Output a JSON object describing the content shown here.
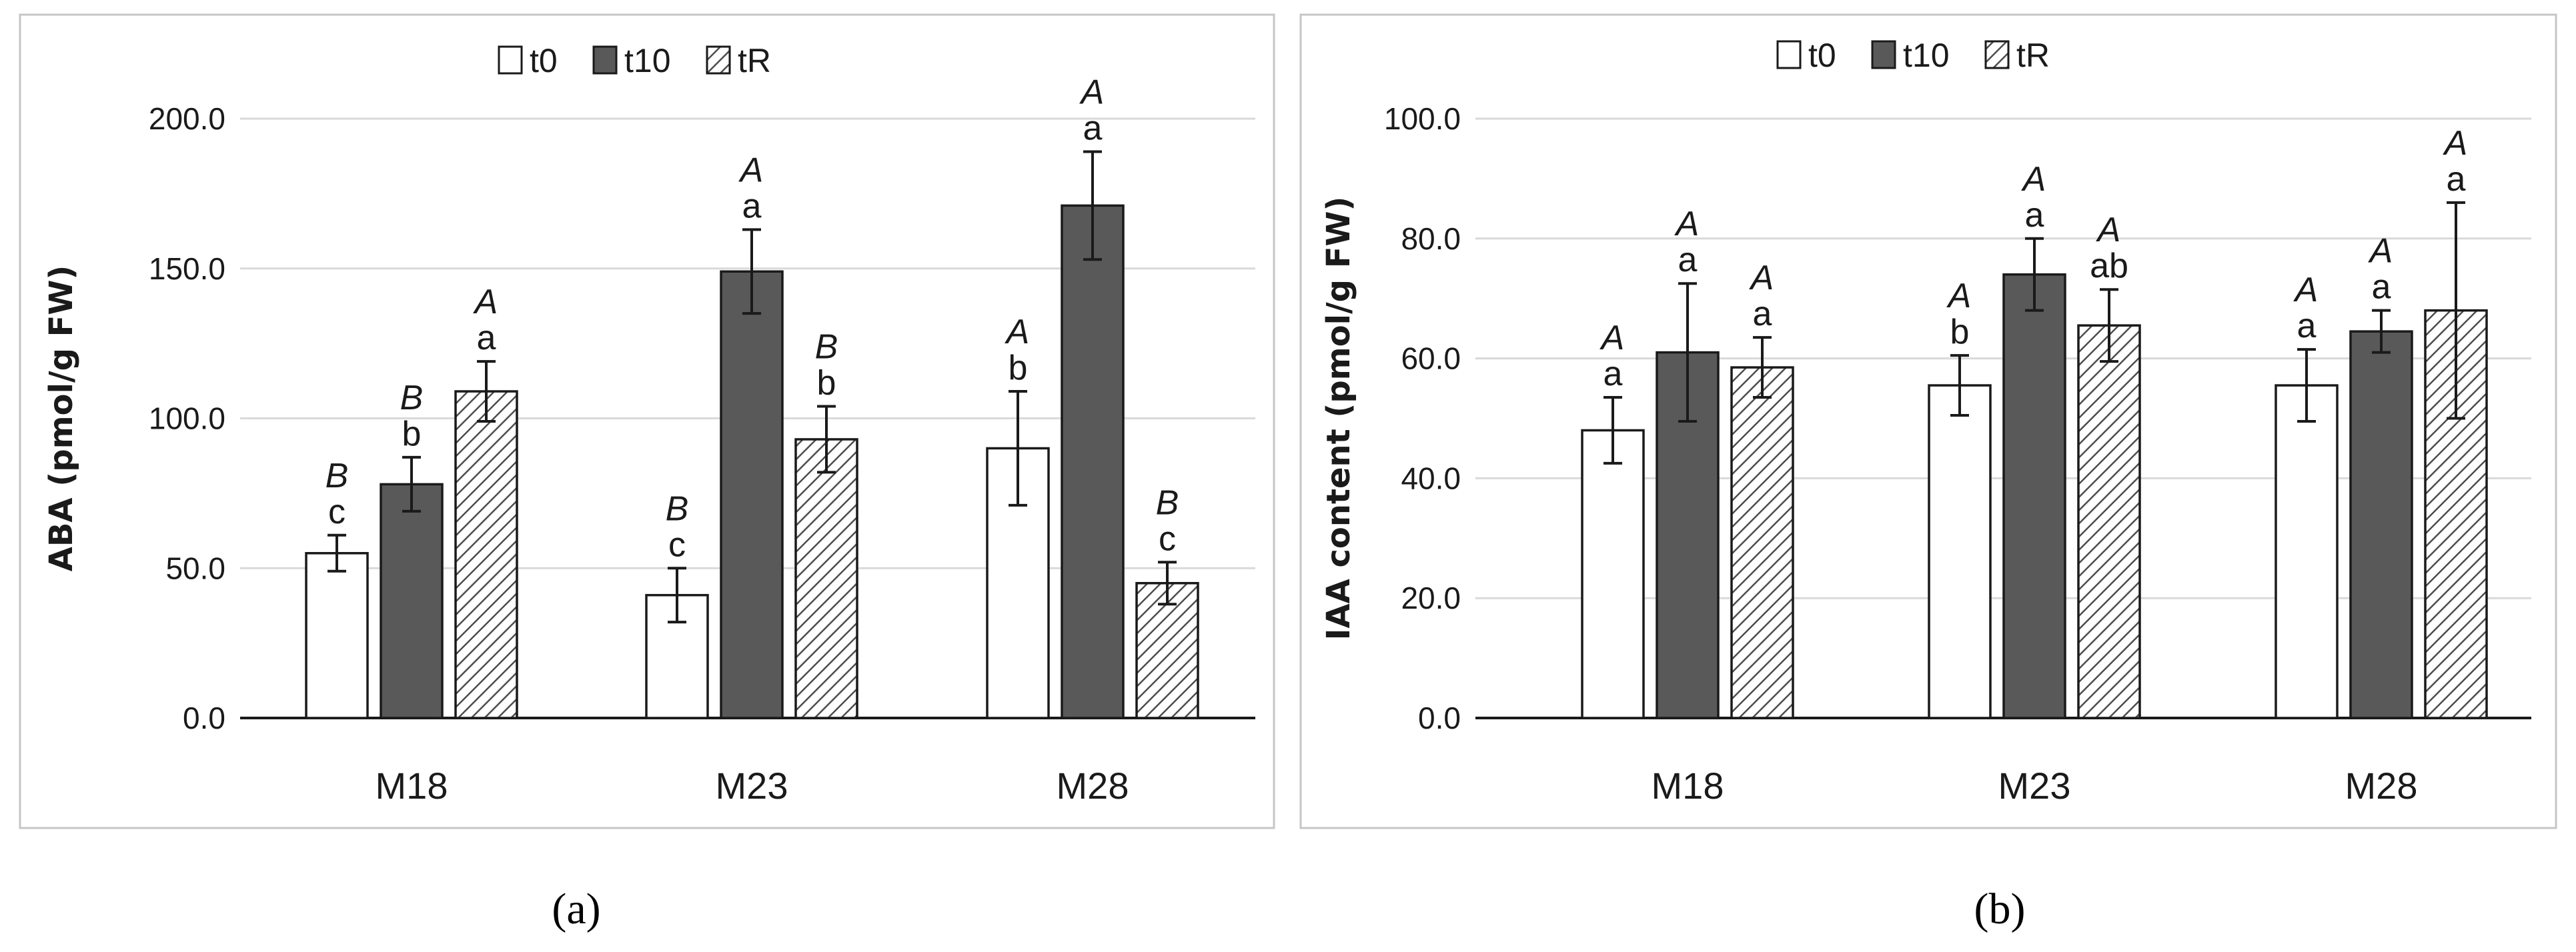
{
  "panel_labels": [
    "(a)",
    "(b)"
  ],
  "colors": {
    "t0": "#ffffff",
    "t10": "#595959",
    "tR": "hatch"
  },
  "chart_data": [
    {
      "type": "bar",
      "title": "",
      "xlabel": "",
      "ylabel": "ABA (pmol/g FW)",
      "categories": [
        "M18",
        "M23",
        "M28"
      ],
      "ylim": [
        0,
        200
      ],
      "yticks": [
        "0.0",
        "50.0",
        "100.0",
        "150.0",
        "200.0"
      ],
      "ytick_values": [
        0,
        50,
        100,
        150,
        200
      ],
      "legend": [
        "t0",
        "t10",
        "tR"
      ],
      "series": [
        {
          "name": "t0",
          "values": [
            55,
            41,
            90
          ],
          "errors": [
            6,
            9,
            19
          ],
          "upper": [
            "B",
            "B",
            "A"
          ],
          "lower": [
            "c",
            "c",
            "b"
          ]
        },
        {
          "name": "t10",
          "values": [
            78,
            149,
            171
          ],
          "errors": [
            9,
            14,
            18
          ],
          "upper": [
            "B",
            "A",
            "A"
          ],
          "lower": [
            "b",
            "a",
            "a"
          ]
        },
        {
          "name": "tR",
          "values": [
            109,
            93,
            45
          ],
          "errors": [
            10,
            11,
            7
          ],
          "upper": [
            "A",
            "B",
            "B"
          ],
          "lower": [
            "a",
            "b",
            "c"
          ]
        }
      ]
    },
    {
      "type": "bar",
      "title": "",
      "xlabel": "",
      "ylabel": "IAA content (pmol/g FW)",
      "categories": [
        "M18",
        "M23",
        "M28"
      ],
      "ylim": [
        0,
        100
      ],
      "yticks": [
        "0.0",
        "20.0",
        "40.0",
        "60.0",
        "80.0",
        "100.0"
      ],
      "ytick_values": [
        0,
        20,
        40,
        60,
        80,
        100
      ],
      "legend": [
        "t0",
        "t10",
        "tR"
      ],
      "series": [
        {
          "name": "t0",
          "values": [
            48,
            55.5,
            55.5
          ],
          "errors": [
            5.5,
            5,
            6
          ],
          "upper": [
            "A",
            "A",
            "A"
          ],
          "lower": [
            "a",
            "b",
            "a"
          ]
        },
        {
          "name": "t10",
          "values": [
            61,
            74,
            64.5
          ],
          "errors": [
            11.5,
            6,
            3.5
          ],
          "upper": [
            "A",
            "A",
            "A"
          ],
          "lower": [
            "a",
            "a",
            "a"
          ]
        },
        {
          "name": "tR",
          "values": [
            58.5,
            65.5,
            68
          ],
          "errors": [
            5,
            6,
            18
          ],
          "upper": [
            "A",
            "A",
            "A"
          ],
          "lower": [
            "a",
            "ab",
            "a"
          ]
        }
      ]
    }
  ]
}
